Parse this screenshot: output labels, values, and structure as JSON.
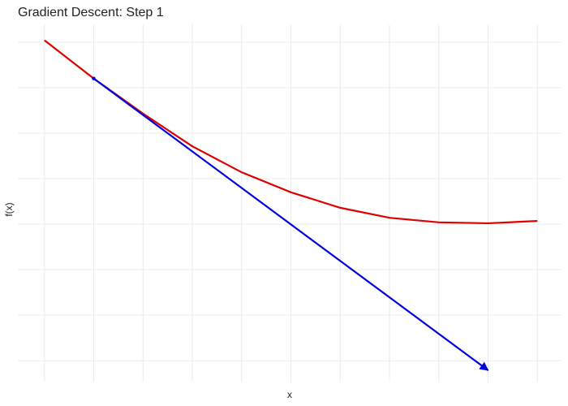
{
  "chart_data": {
    "type": "line",
    "title": "Gradient Descent: Step 1",
    "x_label": "x",
    "y_label": "f(x)",
    "series": [
      {
        "color": "#e00000",
        "x": [
          0,
          1,
          2,
          3,
          4,
          5,
          6,
          7,
          8,
          9,
          10
        ],
        "values": [
          7.04,
          6.2,
          5.43,
          4.71,
          4.14,
          3.7,
          3.36,
          3.14,
          3.04,
          3.02,
          3.07
        ]
      },
      {
        "color": "#0000dd",
        "arrow": true,
        "x": [
          1,
          9
        ],
        "values": [
          6.2,
          -0.21
        ]
      }
    ],
    "xlim": [
      -0.54,
      10.49
    ],
    "ylim": [
      -0.46,
      7.39
    ],
    "xticks": [
      0,
      1,
      2,
      3,
      4,
      5,
      6,
      7,
      8,
      9,
      10
    ],
    "yticks": [
      0,
      1,
      2,
      3,
      4,
      5,
      6,
      7
    ],
    "grid": true
  }
}
